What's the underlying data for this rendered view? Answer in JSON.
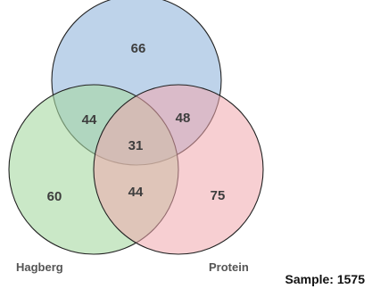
{
  "diagram": {
    "sets": [
      {
        "id": "top",
        "label": "",
        "color": "#a8c4e3"
      },
      {
        "id": "left",
        "label": "Hagberg",
        "color": "#a6d8a2"
      },
      {
        "id": "right",
        "label": "Protein",
        "color": "#f1a7ad"
      }
    ],
    "regions": {
      "top_only": "66",
      "left_only": "60",
      "right_only": "75",
      "top_left": "44",
      "top_right": "48",
      "left_right": "44",
      "all_three": "31"
    },
    "sample_label": "Sample: 1575"
  }
}
